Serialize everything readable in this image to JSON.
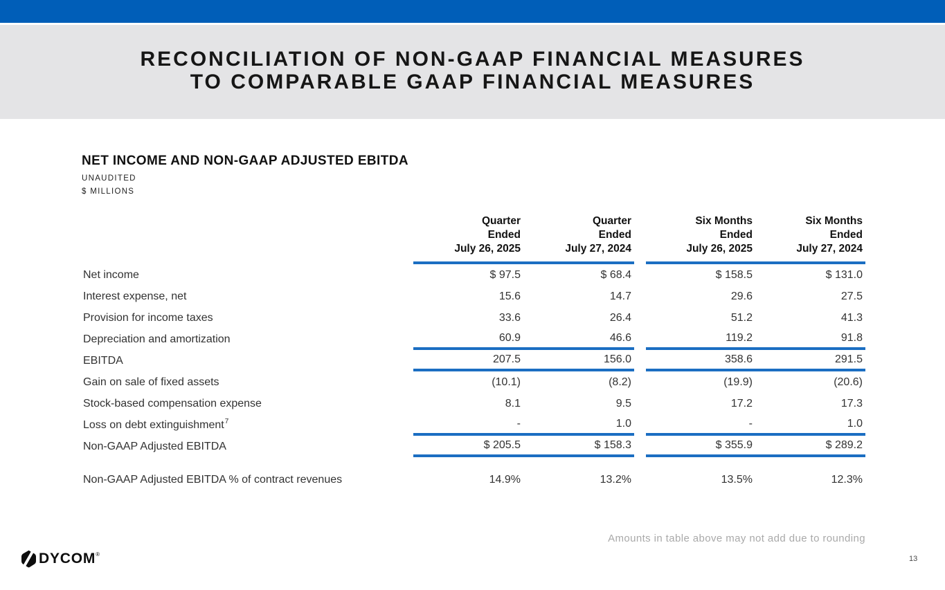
{
  "slide": {
    "title_line1": "RECONCILIATION OF NON-GAAP FINANCIAL MEASURES",
    "title_line2": "TO COMPARABLE GAAP FINANCIAL MEASURES",
    "page_number": "13"
  },
  "section": {
    "heading": "NET INCOME AND NON-GAAP ADJUSTED EBITDA",
    "note_unaudited": "UNAUDITED",
    "note_units": "$ MILLIONS"
  },
  "table": {
    "column_headers": [
      {
        "lines": [
          "Quarter",
          "Ended",
          "July 26, 2025"
        ]
      },
      {
        "lines": [
          "Quarter",
          "Ended",
          "July 27, 2024"
        ]
      },
      {
        "lines": [
          "Six Months",
          "Ended",
          "July 26, 2025"
        ]
      },
      {
        "lines": [
          "Six Months",
          "Ended",
          "July 27, 2024"
        ]
      }
    ],
    "rows": [
      {
        "label": "Net income",
        "values": [
          "$ 97.5",
          "$ 68.4",
          "$ 158.5",
          "$ 131.0"
        ]
      },
      {
        "label": "Interest expense, net",
        "values": [
          "15.6",
          "14.7",
          "29.6",
          "27.5"
        ]
      },
      {
        "label": "Provision for income taxes",
        "values": [
          "33.6",
          "26.4",
          "51.2",
          "41.3"
        ]
      },
      {
        "label": "Depreciation and amortization",
        "values": [
          "60.9",
          "46.6",
          "119.2",
          "91.8"
        ],
        "rule_below": true
      },
      {
        "label": "EBITDA",
        "values": [
          "207.5",
          "156.0",
          "358.6",
          "291.5"
        ],
        "rule_below": true
      },
      {
        "label": "Gain on sale of fixed assets",
        "values": [
          "(10.1)",
          "(8.2)",
          "(19.9)",
          "(20.6)"
        ]
      },
      {
        "label": "Stock-based compensation expense",
        "values": [
          "8.1",
          "9.5",
          "17.2",
          "17.3"
        ]
      },
      {
        "label": "Loss on debt extinguishment",
        "label_superscript": "7",
        "values": [
          "-",
          "1.0",
          "-",
          "1.0"
        ],
        "rule_below": true
      },
      {
        "label": "Non-GAAP Adjusted EBITDA",
        "values": [
          "$ 205.5",
          "$ 158.3",
          "$ 355.9",
          "$ 289.2"
        ],
        "rule_below": true
      },
      {
        "label": "Non-GAAP Adjusted EBITDA % of contract revenues",
        "values": [
          "14.9%",
          "13.2%",
          "13.5%",
          "12.3%"
        ],
        "spacer_above": true
      }
    ]
  },
  "footer": {
    "rounding_note": "Amounts in table above may not add due to rounding",
    "logo_text": "DYCOM",
    "logo_mark": "®"
  },
  "colors": {
    "accent_blue": "#005EB8",
    "rule_blue": "#1B6EC2",
    "band_gray": "#E4E4E6"
  }
}
